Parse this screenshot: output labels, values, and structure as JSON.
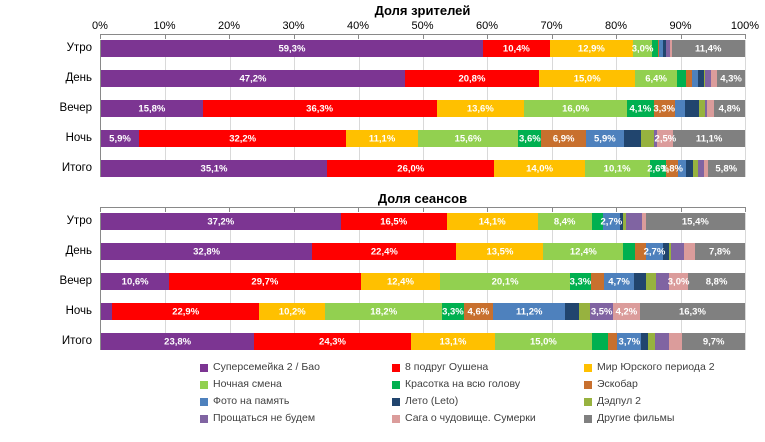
{
  "series": [
    {
      "name": "Суперсемейка 2 / Бао",
      "color": "#7C3592"
    },
    {
      "name": "8 подруг Оушена",
      "color": "#FF0000"
    },
    {
      "name": "Мир Юрского периода 2",
      "color": "#FFC000"
    },
    {
      "name": "Ночная смена",
      "color": "#92D050"
    },
    {
      "name": "Красотка на всю голову",
      "color": "#00B050"
    },
    {
      "name": "Эскобар",
      "color": "#C8702E"
    },
    {
      "name": "Фото на память",
      "color": "#4E81BD"
    },
    {
      "name": "Лето (Leto)",
      "color": "#21456E"
    },
    {
      "name": "Дэдпул 2",
      "color": "#97B23F"
    },
    {
      "name": "Прощаться не будем",
      "color": "#8064A2"
    },
    {
      "name": "Сага о чудовище. Сумерки",
      "color": "#DB9C9B"
    },
    {
      "name": "Другие фильмы",
      "color": "#808080"
    }
  ],
  "chart_data": [
    {
      "type": "bar",
      "orientation": "horizontal-stacked",
      "title": "Доля зрителей",
      "xlim": [
        0,
        100
      ],
      "grid": true,
      "show_tick_labels": true,
      "x_ticks": [
        "0%",
        "10%",
        "20%",
        "30%",
        "40%",
        "50%",
        "60%",
        "70%",
        "80%",
        "90%",
        "100%"
      ],
      "categories": [
        "Утро",
        "День",
        "Вечер",
        "Ночь",
        "Итого"
      ],
      "rows": [
        {
          "values": [
            59.3,
            10.4,
            12.9,
            3.0,
            0.9,
            0.2,
            0.6,
            0.4,
            0.1,
            0.6,
            0.2,
            11.4
          ],
          "labels": [
            "59,3%",
            "10,4%",
            "12,9%",
            "3,0%",
            "",
            "",
            "",
            "",
            "",
            "",
            "",
            "11,4%"
          ]
        },
        {
          "values": [
            47.2,
            20.8,
            15.0,
            6.4,
            1.4,
            1.0,
            0.9,
            0.9,
            0.2,
            1.0,
            0.9,
            4.3
          ],
          "labels": [
            "47,2%",
            "20,8%",
            "15,0%",
            "6,4%",
            "",
            "",
            "",
            "",
            "",
            "",
            "",
            "4,3%"
          ]
        },
        {
          "values": [
            15.8,
            36.3,
            13.6,
            16.0,
            4.1,
            3.3,
            1.6,
            2.1,
            1.0,
            0.3,
            1.1,
            4.8
          ],
          "labels": [
            "15,8%",
            "36,3%",
            "13,6%",
            "16,0%",
            "4,1%",
            "3,3%",
            "",
            "",
            "",
            "",
            "",
            "4,8%"
          ]
        },
        {
          "values": [
            5.9,
            32.2,
            11.1,
            15.6,
            3.6,
            6.9,
            5.9,
            2.7,
            2.0,
            0.5,
            2.5,
            11.1
          ],
          "labels": [
            "5,9%",
            "32,2%",
            "11,1%",
            "15,6%",
            "3,6%",
            "6,9%",
            "5,9%",
            "",
            "",
            "",
            "2,5%",
            "11,1%"
          ]
        },
        {
          "values": [
            35.1,
            26.0,
            14.0,
            10.1,
            2.6,
            1.8,
            1.2,
            1.1,
            0.8,
            0.9,
            0.6,
            5.8
          ],
          "labels": [
            "35,1%",
            "26,0%",
            "14,0%",
            "10,1%",
            "2,6%",
            "1,8%",
            "",
            "",
            "",
            "",
            "",
            "5,8%"
          ]
        }
      ]
    },
    {
      "type": "bar",
      "orientation": "horizontal-stacked",
      "title": "Доля сеансов",
      "xlim": [
        0,
        100
      ],
      "grid": true,
      "show_tick_labels": false,
      "x_ticks": [],
      "categories": [
        "Утро",
        "День",
        "Вечер",
        "Ночь",
        "Итого"
      ],
      "rows": [
        {
          "values": [
            37.2,
            16.5,
            14.1,
            8.4,
            1.7,
            0.0,
            2.7,
            0.5,
            0.5,
            2.4,
            0.6,
            15.4
          ],
          "labels": [
            "37,2%",
            "16,5%",
            "14,1%",
            "8,4%",
            "",
            "",
            "2,7%",
            "",
            "",
            "",
            "",
            "15,4%"
          ]
        },
        {
          "values": [
            32.8,
            22.4,
            13.5,
            12.4,
            1.8,
            1.7,
            2.7,
            0.9,
            0.4,
            1.9,
            1.7,
            7.8
          ],
          "labels": [
            "32,8%",
            "22,4%",
            "13,5%",
            "12,4%",
            "",
            "",
            "2,7%",
            "",
            "",
            "",
            "",
            "7,8%"
          ]
        },
        {
          "values": [
            10.6,
            29.7,
            12.4,
            20.1,
            3.3,
            2.0,
            4.7,
            1.8,
            1.6,
            2.0,
            3.0,
            8.8
          ],
          "labels": [
            "10,6%",
            "29,7%",
            "12,4%",
            "20,1%",
            "3,3%",
            "",
            "4,7%",
            "",
            "",
            "",
            "3,0%",
            "8,8%"
          ]
        },
        {
          "values": [
            1.7,
            22.9,
            10.2,
            18.2,
            3.3,
            4.6,
            11.2,
            2.2,
            1.7,
            3.5,
            4.2,
            16.3
          ],
          "labels": [
            "",
            "22,9%",
            "10,2%",
            "18,2%",
            "3,3%",
            "4,6%",
            "11,2%",
            "",
            "",
            "3,5%",
            "4,2%",
            "16,3%"
          ]
        },
        {
          "values": [
            23.8,
            24.3,
            13.1,
            15.0,
            2.5,
            1.5,
            3.7,
            1.1,
            1.0,
            2.2,
            2.1,
            9.7
          ],
          "labels": [
            "23,8%",
            "24,3%",
            "13,1%",
            "15,0%",
            "",
            "",
            "3,7%",
            "",
            "",
            "",
            "",
            "9,7%"
          ]
        }
      ]
    }
  ],
  "legend": {
    "position": "bottom",
    "columns": 3
  }
}
